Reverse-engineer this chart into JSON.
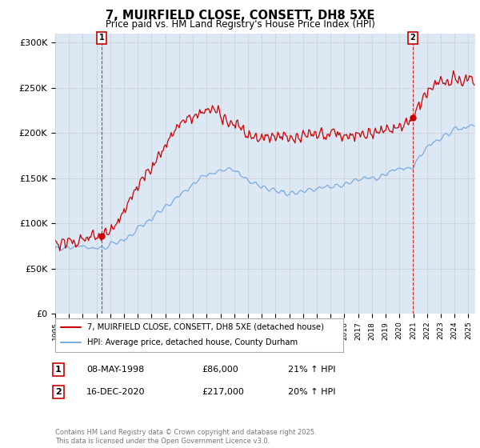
{
  "title": "7, MUIRFIELD CLOSE, CONSETT, DH8 5XE",
  "subtitle": "Price paid vs. HM Land Registry's House Price Index (HPI)",
  "ylabel_ticks": [
    "£0",
    "£50K",
    "£100K",
    "£150K",
    "£200K",
    "£250K",
    "£300K"
  ],
  "ytick_values": [
    0,
    50000,
    100000,
    150000,
    200000,
    250000,
    300000
  ],
  "ylim": [
    0,
    310000
  ],
  "xlim_start": 1995.0,
  "xlim_end": 2025.5,
  "legend_label_red": "7, MUIRFIELD CLOSE, CONSETT, DH8 5XE (detached house)",
  "legend_label_blue": "HPI: Average price, detached house, County Durham",
  "transaction1_date": "08-MAY-1998",
  "transaction1_price": "£86,000",
  "transaction1_hpi": "21% ↑ HPI",
  "transaction2_date": "16-DEC-2020",
  "transaction2_price": "£217,000",
  "transaction2_hpi": "20% ↑ HPI",
  "copyright_text": "Contains HM Land Registry data © Crown copyright and database right 2025.\nThis data is licensed under the Open Government Licence v3.0.",
  "red_color": "#cc0000",
  "blue_color": "#7aabe0",
  "transaction1_x": 1998.36,
  "transaction2_x": 2020.96,
  "transaction1_y_red": 86000,
  "transaction2_y_red": 217000,
  "grid_color": "#cccccc",
  "background_color": "#ffffff",
  "chart_bg_color": "#dde8f5"
}
